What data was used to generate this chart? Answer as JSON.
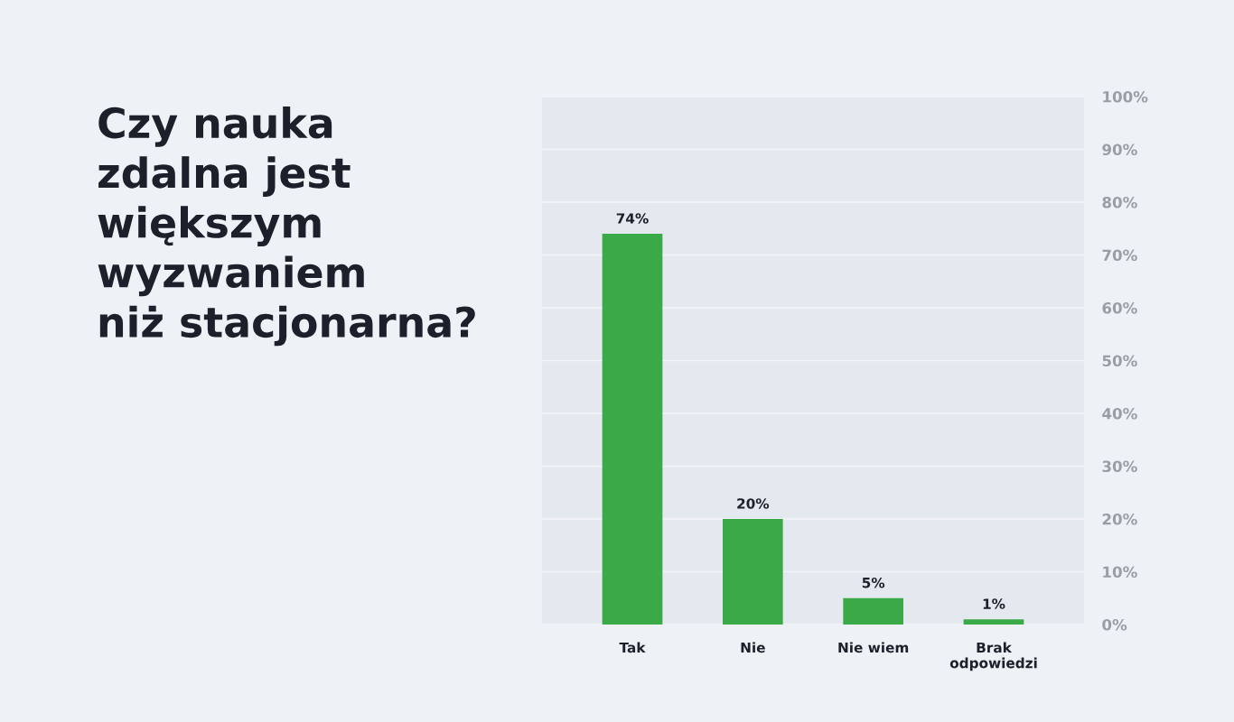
{
  "chart_data": {
    "type": "bar",
    "title": "Czy nauka\nzdalna jest\nwiększym\nwyzwaniem\nniż stacjonarna?",
    "categories": [
      "Tak",
      "Nie",
      "Nie wiem",
      "Brak\nodpowiedzi"
    ],
    "values": [
      74,
      20,
      5,
      1
    ],
    "color": "#3aaa48",
    "value_labels": [
      "74%",
      "20%",
      "5%",
      "1%"
    ],
    "ylim": [
      0,
      100
    ],
    "yticks": [
      {
        "value": 0,
        "label": "0%"
      },
      {
        "value": 10,
        "label": "10%"
      },
      {
        "value": 20,
        "label": "20%"
      },
      {
        "value": 30,
        "label": "30%"
      },
      {
        "value": 40,
        "label": "40%"
      },
      {
        "value": 50,
        "label": "50%"
      },
      {
        "value": 60,
        "label": "60%"
      },
      {
        "value": 70,
        "label": "70%"
      },
      {
        "value": 80,
        "label": "80%"
      },
      {
        "value": 90,
        "label": "90%"
      },
      {
        "value": 100,
        "label": "100%"
      }
    ],
    "grid": "y"
  }
}
